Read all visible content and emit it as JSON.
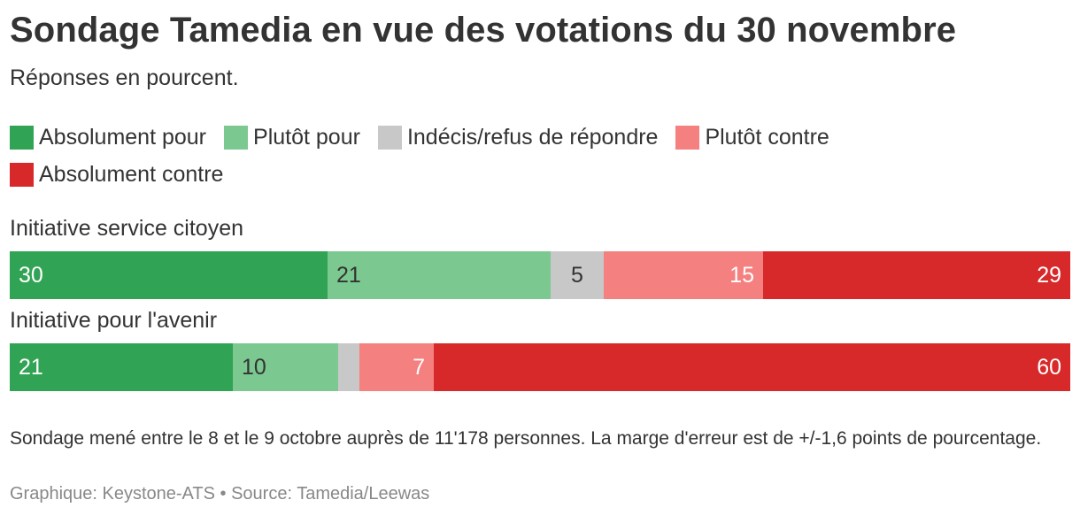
{
  "chart_data": {
    "type": "bar",
    "stacked": true,
    "orientation": "horizontal",
    "title": "Sondage Tamedia en vue des votations du 30 novembre",
    "subtitle": "Réponses en pourcent.",
    "categories": [
      "Initiative service citoyen",
      "Initiative pour l'avenir"
    ],
    "series": [
      {
        "name": "Absolument pour",
        "color": "#31a354",
        "text_color": "#ffffff",
        "values": [
          30,
          21
        ],
        "labels": [
          "30",
          "21"
        ]
      },
      {
        "name": "Plutôt pour",
        "color": "#7bc890",
        "text_color": "#333333",
        "values": [
          21,
          10
        ],
        "labels": [
          "21",
          "10"
        ]
      },
      {
        "name": "Indécis/refus de répondre",
        "color": "#c8c8c8",
        "text_color": "#333333",
        "values": [
          5,
          2
        ],
        "labels": [
          "5",
          ""
        ]
      },
      {
        "name": "Plutôt contre",
        "color": "#f58080",
        "text_color": "#ffffff",
        "values": [
          15,
          7
        ],
        "labels": [
          "15",
          "7"
        ]
      },
      {
        "name": "Absolument contre",
        "color": "#d7292a",
        "text_color": "#ffffff",
        "values": [
          29,
          60
        ],
        "labels": [
          "29",
          "60"
        ]
      }
    ],
    "xlim": [
      0,
      100
    ],
    "legend_position": "top"
  },
  "footer": {
    "note": "Sondage mené entre le 8 et le 9 octobre auprès de 11'178 personnes. La marge d'erreur est de +/-1,6 points de pourcentage.",
    "credits": "Graphique: Keystone-ATS • Source: Tamedia/Leewas"
  }
}
